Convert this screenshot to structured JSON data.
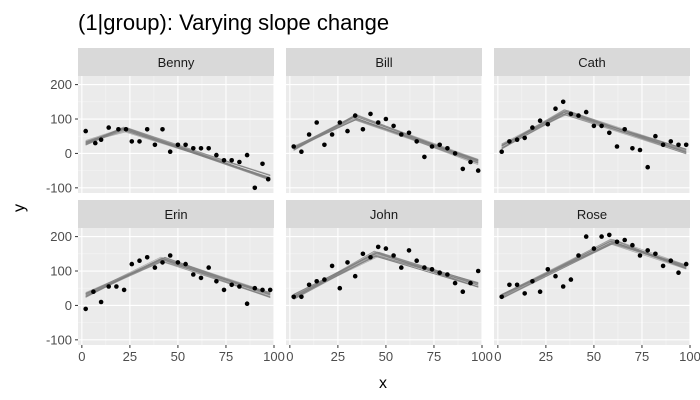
{
  "chart_data": {
    "type": "scatter",
    "title": "(1|group): Varying slope change",
    "xlabel": "x",
    "ylabel": "y",
    "xlim": [
      -2,
      100
    ],
    "ylim": [
      -115,
      225
    ],
    "x_ticks": [
      0,
      25,
      50,
      75,
      100
    ],
    "y_ticks": [
      -100,
      0,
      100,
      200
    ],
    "x_tick_labels": [
      "0",
      "25",
      "50",
      "75",
      "100"
    ],
    "y_tick_labels": [
      "-100",
      "0",
      "100",
      "200"
    ],
    "grid": true,
    "layout": "facet-grid-2x3",
    "fit_line_color": "#808080",
    "point_color": "#000000",
    "panel_background": "#ebebeb",
    "strip_background": "#d9d9d9",
    "panels": [
      {
        "name": "Benny",
        "fit": {
          "start": [
            2,
            30
          ],
          "peak": [
            22,
            70
          ],
          "end": [
            98,
            -70
          ]
        },
        "points": [
          [
            2,
            65
          ],
          [
            7,
            30
          ],
          [
            10,
            40
          ],
          [
            14,
            75
          ],
          [
            19,
            70
          ],
          [
            23,
            70
          ],
          [
            26,
            35
          ],
          [
            30,
            35
          ],
          [
            34,
            70
          ],
          [
            38,
            25
          ],
          [
            42,
            70
          ],
          [
            46,
            5
          ],
          [
            50,
            25
          ],
          [
            54,
            25
          ],
          [
            58,
            15
          ],
          [
            62,
            15
          ],
          [
            66,
            15
          ],
          [
            70,
            -5
          ],
          [
            74,
            -20
          ],
          [
            78,
            -20
          ],
          [
            82,
            -25
          ],
          [
            86,
            -5
          ],
          [
            90,
            -100
          ],
          [
            94,
            -30
          ],
          [
            97,
            -75
          ]
        ]
      },
      {
        "name": "Bill",
        "fit": {
          "start": [
            2,
            15
          ],
          "peak": [
            34,
            105
          ],
          "end": [
            98,
            -25
          ]
        },
        "points": [
          [
            2,
            20
          ],
          [
            6,
            5
          ],
          [
            10,
            55
          ],
          [
            14,
            90
          ],
          [
            18,
            25
          ],
          [
            22,
            55
          ],
          [
            26,
            90
          ],
          [
            30,
            65
          ],
          [
            34,
            110
          ],
          [
            38,
            70
          ],
          [
            42,
            115
          ],
          [
            46,
            90
          ],
          [
            50,
            100
          ],
          [
            54,
            80
          ],
          [
            58,
            55
          ],
          [
            62,
            60
          ],
          [
            66,
            35
          ],
          [
            70,
            -10
          ],
          [
            74,
            20
          ],
          [
            78,
            25
          ],
          [
            82,
            15
          ],
          [
            86,
            0
          ],
          [
            90,
            -45
          ],
          [
            94,
            -25
          ],
          [
            98,
            -50
          ]
        ]
      },
      {
        "name": "Cath",
        "fit": {
          "start": [
            2,
            20
          ],
          "peak": [
            35,
            120
          ],
          "end": [
            98,
            5
          ]
        },
        "points": [
          [
            2,
            5
          ],
          [
            6,
            35
          ],
          [
            10,
            40
          ],
          [
            14,
            45
          ],
          [
            18,
            75
          ],
          [
            22,
            95
          ],
          [
            26,
            85
          ],
          [
            30,
            130
          ],
          [
            34,
            150
          ],
          [
            38,
            115
          ],
          [
            42,
            110
          ],
          [
            46,
            120
          ],
          [
            50,
            80
          ],
          [
            54,
            80
          ],
          [
            58,
            60
          ],
          [
            62,
            20
          ],
          [
            66,
            70
          ],
          [
            70,
            15
          ],
          [
            74,
            10
          ],
          [
            78,
            -40
          ],
          [
            82,
            50
          ],
          [
            86,
            25
          ],
          [
            90,
            35
          ],
          [
            94,
            25
          ],
          [
            98,
            25
          ]
        ]
      },
      {
        "name": "Erin",
        "fit": {
          "start": [
            2,
            30
          ],
          "peak": [
            42,
            135
          ],
          "end": [
            98,
            30
          ]
        },
        "points": [
          [
            2,
            -10
          ],
          [
            6,
            40
          ],
          [
            10,
            10
          ],
          [
            14,
            55
          ],
          [
            18,
            55
          ],
          [
            22,
            45
          ],
          [
            26,
            120
          ],
          [
            30,
            130
          ],
          [
            34,
            140
          ],
          [
            38,
            110
          ],
          [
            42,
            125
          ],
          [
            46,
            145
          ],
          [
            50,
            125
          ],
          [
            54,
            120
          ],
          [
            58,
            90
          ],
          [
            62,
            80
          ],
          [
            66,
            110
          ],
          [
            70,
            70
          ],
          [
            74,
            45
          ],
          [
            78,
            60
          ],
          [
            82,
            55
          ],
          [
            86,
            5
          ],
          [
            90,
            50
          ],
          [
            94,
            45
          ],
          [
            98,
            45
          ]
        ]
      },
      {
        "name": "John",
        "fit": {
          "start": [
            2,
            25
          ],
          "peak": [
            45,
            150
          ],
          "end": [
            98,
            60
          ]
        },
        "points": [
          [
            2,
            25
          ],
          [
            6,
            25
          ],
          [
            10,
            60
          ],
          [
            14,
            70
          ],
          [
            18,
            75
          ],
          [
            22,
            115
          ],
          [
            26,
            50
          ],
          [
            30,
            125
          ],
          [
            34,
            85
          ],
          [
            38,
            150
          ],
          [
            42,
            140
          ],
          [
            46,
            170
          ],
          [
            50,
            165
          ],
          [
            54,
            145
          ],
          [
            58,
            110
          ],
          [
            62,
            160
          ],
          [
            66,
            130
          ],
          [
            70,
            110
          ],
          [
            74,
            105
          ],
          [
            78,
            95
          ],
          [
            82,
            90
          ],
          [
            86,
            65
          ],
          [
            90,
            40
          ],
          [
            94,
            65
          ],
          [
            98,
            100
          ]
        ]
      },
      {
        "name": "Rose",
        "fit": {
          "start": [
            2,
            25
          ],
          "peak": [
            60,
            185
          ],
          "end": [
            98,
            110
          ]
        },
        "points": [
          [
            2,
            25
          ],
          [
            6,
            60
          ],
          [
            10,
            60
          ],
          [
            14,
            35
          ],
          [
            18,
            70
          ],
          [
            22,
            40
          ],
          [
            26,
            105
          ],
          [
            30,
            85
          ],
          [
            34,
            55
          ],
          [
            38,
            75
          ],
          [
            42,
            145
          ],
          [
            46,
            200
          ],
          [
            50,
            165
          ],
          [
            54,
            200
          ],
          [
            58,
            205
          ],
          [
            62,
            185
          ],
          [
            66,
            190
          ],
          [
            70,
            175
          ],
          [
            74,
            145
          ],
          [
            78,
            160
          ],
          [
            82,
            150
          ],
          [
            86,
            115
          ],
          [
            90,
            130
          ],
          [
            94,
            95
          ],
          [
            98,
            120
          ]
        ]
      }
    ]
  }
}
